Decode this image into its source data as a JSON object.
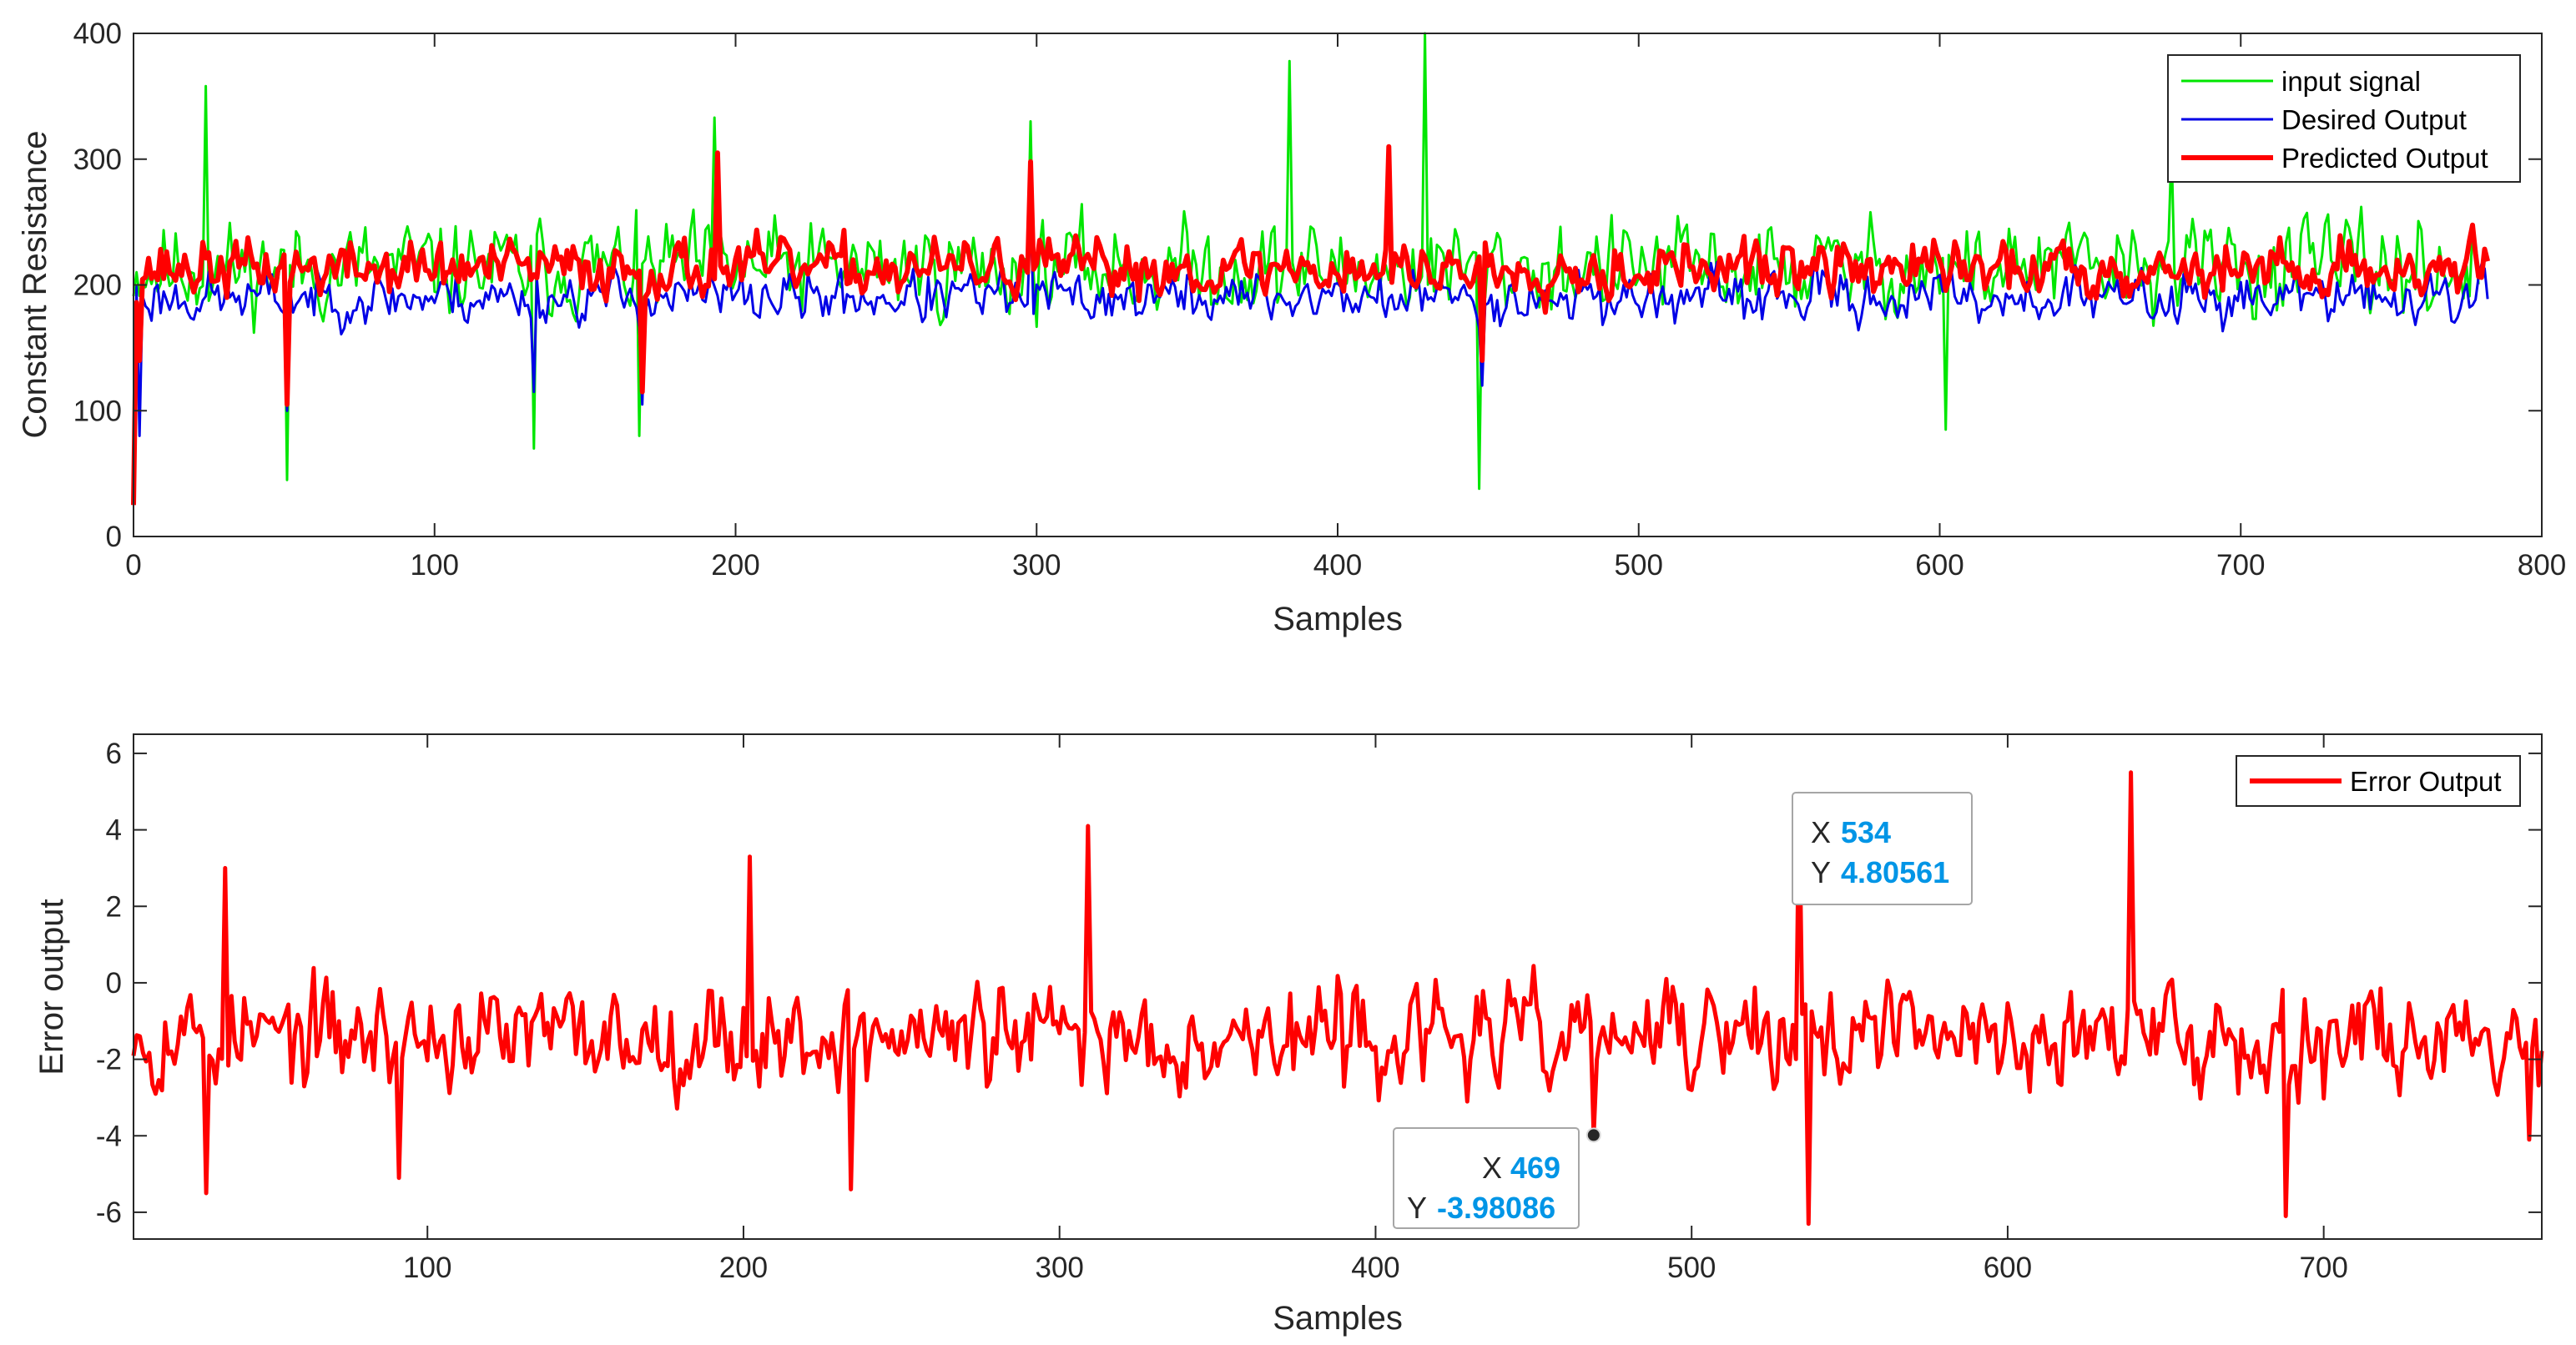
{
  "chart_data": [
    {
      "type": "line",
      "xlabel": "Samples",
      "ylabel": "Constant Resistance",
      "xlim": [
        0,
        800
      ],
      "ylim": [
        0,
        400
      ],
      "xticks": [
        0,
        100,
        200,
        300,
        400,
        500,
        600,
        700,
        800
      ],
      "yticks": [
        0,
        100,
        200,
        300,
        400
      ],
      "grid": false,
      "legend_position": "top-right",
      "series": [
        {
          "name": "input signal",
          "color": "#00e600",
          "style": "noisy",
          "n": 780,
          "base": 213,
          "noise": 40,
          "seed": 11,
          "spikes": [
            [
              24,
              358
            ],
            [
              51,
              45
            ],
            [
              133,
              70
            ],
            [
              168,
              80
            ],
            [
              193,
              333
            ],
            [
              298,
              330
            ],
            [
              384,
              378
            ],
            [
              429,
              403
            ],
            [
              447,
              38
            ],
            [
              602,
              85
            ],
            [
              677,
              310
            ]
          ]
        },
        {
          "name": "Desired Output",
          "color": "#0000e6",
          "style": "noisy",
          "n": 783,
          "base": 190,
          "noise": 22,
          "seed": 23,
          "spikes": [
            [
              0,
              28
            ],
            [
              2,
              80
            ],
            [
              51,
              100
            ],
            [
              133,
              115
            ],
            [
              169,
              105
            ],
            [
              298,
              258
            ],
            [
              448,
              120
            ]
          ]
        },
        {
          "name": "Predicted Output",
          "color": "#ff0000",
          "style": "noisy",
          "n": 783,
          "base": 213,
          "noise": 24,
          "seed": 37,
          "spikes": [
            [
              0,
              25
            ],
            [
              2,
              140
            ],
            [
              51,
              105
            ],
            [
              169,
              115
            ],
            [
              194,
              305
            ],
            [
              298,
              298
            ],
            [
              417,
              310
            ],
            [
              448,
              140
            ]
          ]
        }
      ]
    },
    {
      "type": "line",
      "xlabel": "Samples",
      "ylabel": "Error output",
      "xlim": [
        7,
        769
      ],
      "ylim": [
        -6.7,
        6.5
      ],
      "xticks": [
        100,
        200,
        300,
        400,
        500,
        600,
        700
      ],
      "yticks": [
        -6,
        -4,
        -2,
        0,
        2,
        4,
        6
      ],
      "grid": false,
      "legend_position": "top-right",
      "series": [
        {
          "name": "Error Output",
          "color": "#ff0000",
          "style": "noisy",
          "n": 770,
          "base": -1.4,
          "noise": 1.45,
          "seed": 53,
          "spikes": [
            [
              30,
              -5.5
            ],
            [
              36,
              3.0
            ],
            [
              91,
              -5.1
            ],
            [
              202,
              3.3
            ],
            [
              234,
              -5.4
            ],
            [
              309,
              4.1
            ],
            [
              469,
              -3.98086
            ],
            [
              534,
              4.80561
            ],
            [
              537,
              -6.3
            ],
            [
              639,
              5.5
            ],
            [
              688,
              -6.1
            ],
            [
              765,
              -4.1
            ]
          ]
        }
      ],
      "datatips": [
        {
          "x_label": "X",
          "x_value": "469",
          "y_label": "Y",
          "y_value": "-3.98086",
          "x": 469,
          "y": -3.98086
        },
        {
          "x_label": "X",
          "x_value": "534",
          "y_label": "Y",
          "y_value": "4.80561",
          "x": 534,
          "y": 4.80561
        }
      ]
    }
  ]
}
